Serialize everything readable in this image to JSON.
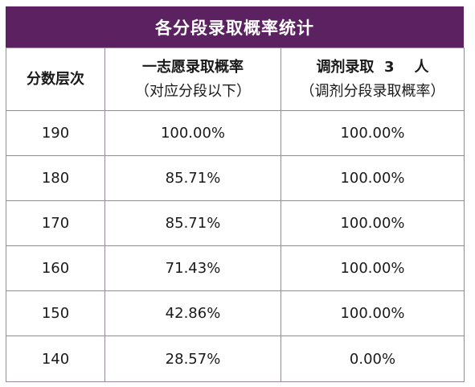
{
  "title": "各分段录取概率统计",
  "headers": {
    "col1": "分数层次",
    "col2_line1": "一志愿录取概率",
    "col2_line2": "（对应分段以下）",
    "col3_line1": "调剂录取  3    人",
    "col3_line2": "（调剂分段录取概率）"
  },
  "rows": [
    {
      "score": "190",
      "first_choice": "100.00%",
      "adjust": "100.00%"
    },
    {
      "score": "180",
      "first_choice": "85.71%",
      "adjust": "100.00%"
    },
    {
      "score": "170",
      "first_choice": "85.71%",
      "adjust": "100.00%"
    },
    {
      "score": "160",
      "first_choice": "71.43%",
      "adjust": "100.00%"
    },
    {
      "score": "150",
      "first_choice": "42.86%",
      "adjust": "100.00%"
    },
    {
      "score": "140",
      "first_choice": "28.57%",
      "adjust": "0.00%"
    }
  ],
  "colors": {
    "title_bg": "#5c2160",
    "title_text": "#ffffff",
    "grid": "#9c86a4"
  }
}
